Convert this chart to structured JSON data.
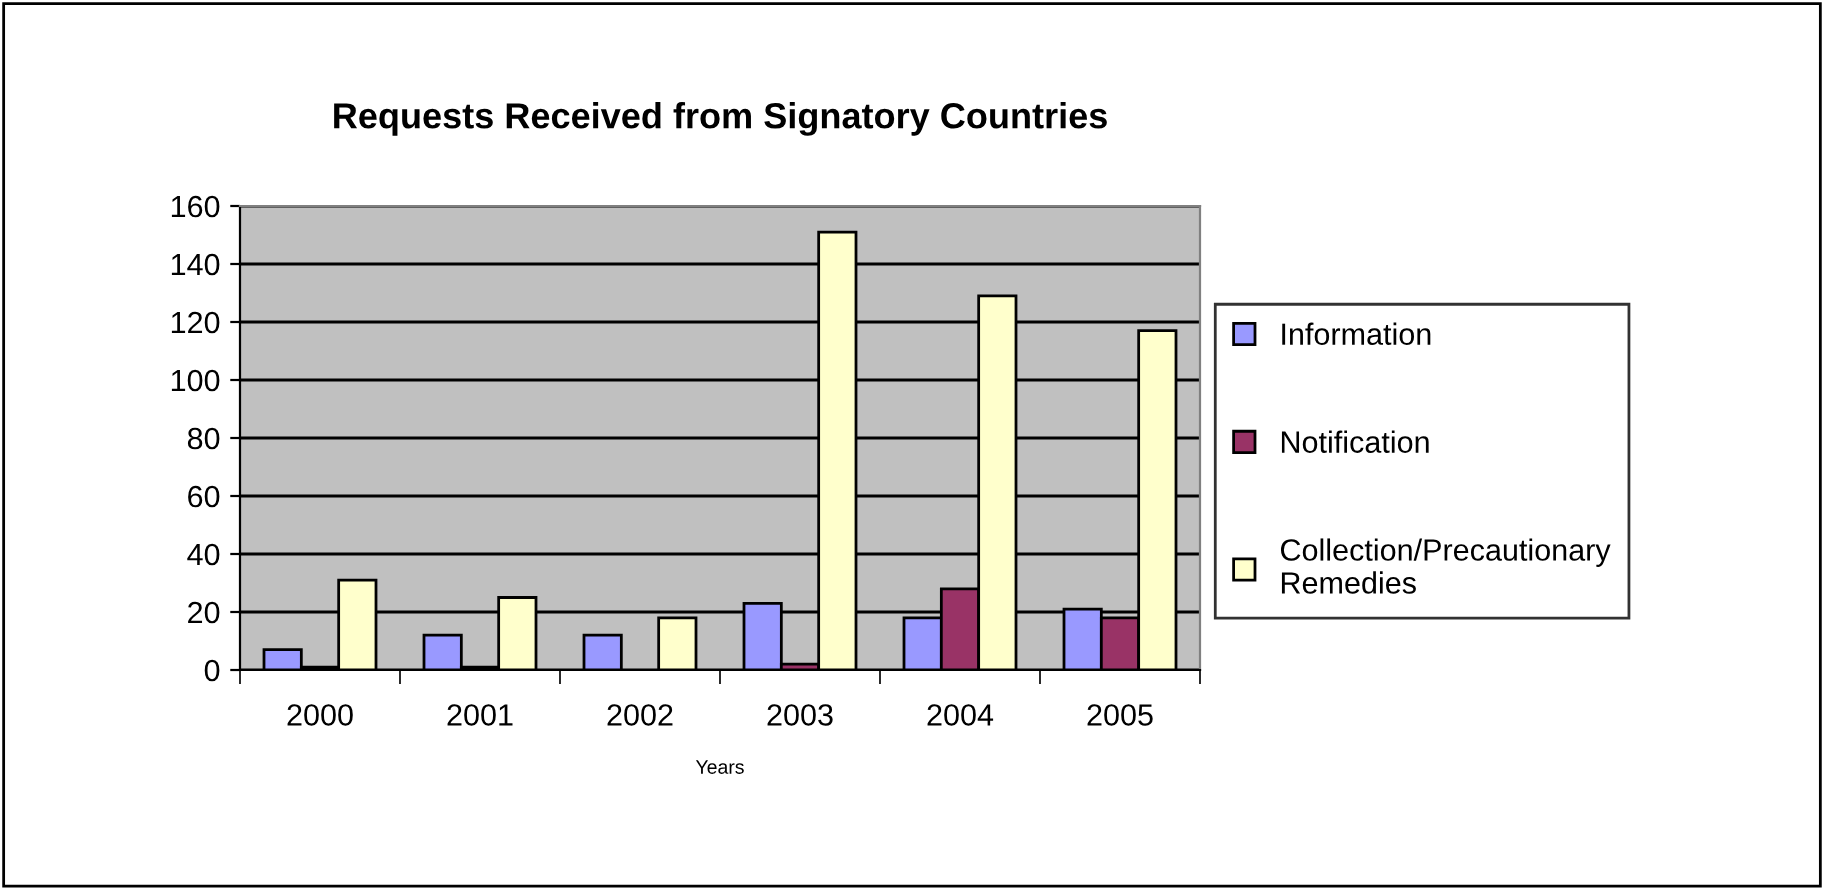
{
  "chart_data": {
    "type": "bar",
    "title": "Requests Received from Signatory Countries",
    "xlabel": "Years",
    "categories": [
      "2000",
      "2001",
      "2002",
      "2003",
      "2004",
      "2005"
    ],
    "series": [
      {
        "name": "Information",
        "color": "#9999ff",
        "values": [
          7,
          12,
          12,
          23,
          18,
          21
        ]
      },
      {
        "name": "Notification",
        "color": "#993366",
        "values": [
          1,
          1,
          null,
          2,
          28,
          18
        ]
      },
      {
        "name": "Collection/Precautionary\nRemedies",
        "color": "#ffffcc",
        "values": [
          31,
          25,
          18,
          151,
          129,
          117
        ]
      }
    ],
    "ylim": [
      0,
      160
    ],
    "yticks": [
      0,
      20,
      40,
      60,
      80,
      100,
      120,
      140,
      160
    ],
    "grid": "y",
    "legend": "right"
  }
}
